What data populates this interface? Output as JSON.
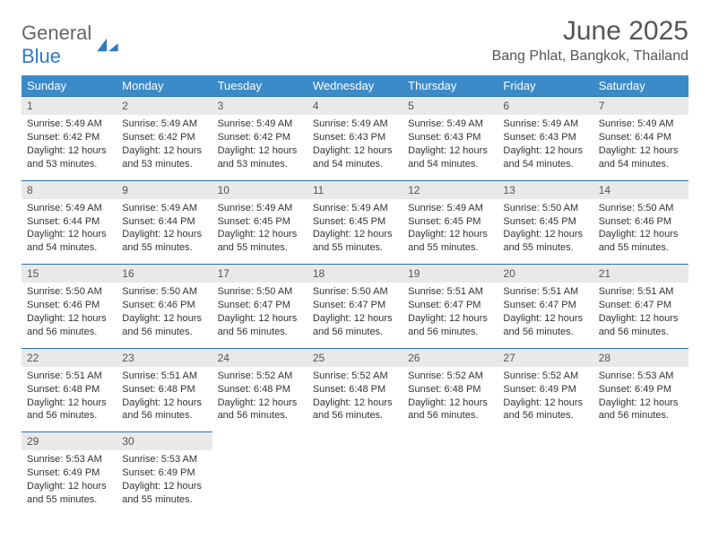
{
  "brand": {
    "part1": "General",
    "part2": "Blue"
  },
  "title": "June 2025",
  "location": "Bang Phlat, Bangkok, Thailand",
  "colors": {
    "header_bg": "#3b8bc9",
    "header_text": "#ffffff",
    "daynum_bg": "#e9e9e9",
    "daynum_border": "#2f6fa9",
    "text": "#333333",
    "brand_blue": "#2f7bbf"
  },
  "weekdays": [
    "Sunday",
    "Monday",
    "Tuesday",
    "Wednesday",
    "Thursday",
    "Friday",
    "Saturday"
  ],
  "weeks": [
    [
      {
        "n": "1",
        "sunrise": "Sunrise: 5:49 AM",
        "sunset": "Sunset: 6:42 PM",
        "daylight": "Daylight: 12 hours and 53 minutes."
      },
      {
        "n": "2",
        "sunrise": "Sunrise: 5:49 AM",
        "sunset": "Sunset: 6:42 PM",
        "daylight": "Daylight: 12 hours and 53 minutes."
      },
      {
        "n": "3",
        "sunrise": "Sunrise: 5:49 AM",
        "sunset": "Sunset: 6:42 PM",
        "daylight": "Daylight: 12 hours and 53 minutes."
      },
      {
        "n": "4",
        "sunrise": "Sunrise: 5:49 AM",
        "sunset": "Sunset: 6:43 PM",
        "daylight": "Daylight: 12 hours and 54 minutes."
      },
      {
        "n": "5",
        "sunrise": "Sunrise: 5:49 AM",
        "sunset": "Sunset: 6:43 PM",
        "daylight": "Daylight: 12 hours and 54 minutes."
      },
      {
        "n": "6",
        "sunrise": "Sunrise: 5:49 AM",
        "sunset": "Sunset: 6:43 PM",
        "daylight": "Daylight: 12 hours and 54 minutes."
      },
      {
        "n": "7",
        "sunrise": "Sunrise: 5:49 AM",
        "sunset": "Sunset: 6:44 PM",
        "daylight": "Daylight: 12 hours and 54 minutes."
      }
    ],
    [
      {
        "n": "8",
        "sunrise": "Sunrise: 5:49 AM",
        "sunset": "Sunset: 6:44 PM",
        "daylight": "Daylight: 12 hours and 54 minutes."
      },
      {
        "n": "9",
        "sunrise": "Sunrise: 5:49 AM",
        "sunset": "Sunset: 6:44 PM",
        "daylight": "Daylight: 12 hours and 55 minutes."
      },
      {
        "n": "10",
        "sunrise": "Sunrise: 5:49 AM",
        "sunset": "Sunset: 6:45 PM",
        "daylight": "Daylight: 12 hours and 55 minutes."
      },
      {
        "n": "11",
        "sunrise": "Sunrise: 5:49 AM",
        "sunset": "Sunset: 6:45 PM",
        "daylight": "Daylight: 12 hours and 55 minutes."
      },
      {
        "n": "12",
        "sunrise": "Sunrise: 5:49 AM",
        "sunset": "Sunset: 6:45 PM",
        "daylight": "Daylight: 12 hours and 55 minutes."
      },
      {
        "n": "13",
        "sunrise": "Sunrise: 5:50 AM",
        "sunset": "Sunset: 6:45 PM",
        "daylight": "Daylight: 12 hours and 55 minutes."
      },
      {
        "n": "14",
        "sunrise": "Sunrise: 5:50 AM",
        "sunset": "Sunset: 6:46 PM",
        "daylight": "Daylight: 12 hours and 55 minutes."
      }
    ],
    [
      {
        "n": "15",
        "sunrise": "Sunrise: 5:50 AM",
        "sunset": "Sunset: 6:46 PM",
        "daylight": "Daylight: 12 hours and 56 minutes."
      },
      {
        "n": "16",
        "sunrise": "Sunrise: 5:50 AM",
        "sunset": "Sunset: 6:46 PM",
        "daylight": "Daylight: 12 hours and 56 minutes."
      },
      {
        "n": "17",
        "sunrise": "Sunrise: 5:50 AM",
        "sunset": "Sunset: 6:47 PM",
        "daylight": "Daylight: 12 hours and 56 minutes."
      },
      {
        "n": "18",
        "sunrise": "Sunrise: 5:50 AM",
        "sunset": "Sunset: 6:47 PM",
        "daylight": "Daylight: 12 hours and 56 minutes."
      },
      {
        "n": "19",
        "sunrise": "Sunrise: 5:51 AM",
        "sunset": "Sunset: 6:47 PM",
        "daylight": "Daylight: 12 hours and 56 minutes."
      },
      {
        "n": "20",
        "sunrise": "Sunrise: 5:51 AM",
        "sunset": "Sunset: 6:47 PM",
        "daylight": "Daylight: 12 hours and 56 minutes."
      },
      {
        "n": "21",
        "sunrise": "Sunrise: 5:51 AM",
        "sunset": "Sunset: 6:47 PM",
        "daylight": "Daylight: 12 hours and 56 minutes."
      }
    ],
    [
      {
        "n": "22",
        "sunrise": "Sunrise: 5:51 AM",
        "sunset": "Sunset: 6:48 PM",
        "daylight": "Daylight: 12 hours and 56 minutes."
      },
      {
        "n": "23",
        "sunrise": "Sunrise: 5:51 AM",
        "sunset": "Sunset: 6:48 PM",
        "daylight": "Daylight: 12 hours and 56 minutes."
      },
      {
        "n": "24",
        "sunrise": "Sunrise: 5:52 AM",
        "sunset": "Sunset: 6:48 PM",
        "daylight": "Daylight: 12 hours and 56 minutes."
      },
      {
        "n": "25",
        "sunrise": "Sunrise: 5:52 AM",
        "sunset": "Sunset: 6:48 PM",
        "daylight": "Daylight: 12 hours and 56 minutes."
      },
      {
        "n": "26",
        "sunrise": "Sunrise: 5:52 AM",
        "sunset": "Sunset: 6:48 PM",
        "daylight": "Daylight: 12 hours and 56 minutes."
      },
      {
        "n": "27",
        "sunrise": "Sunrise: 5:52 AM",
        "sunset": "Sunset: 6:49 PM",
        "daylight": "Daylight: 12 hours and 56 minutes."
      },
      {
        "n": "28",
        "sunrise": "Sunrise: 5:53 AM",
        "sunset": "Sunset: 6:49 PM",
        "daylight": "Daylight: 12 hours and 56 minutes."
      }
    ],
    [
      {
        "n": "29",
        "sunrise": "Sunrise: 5:53 AM",
        "sunset": "Sunset: 6:49 PM",
        "daylight": "Daylight: 12 hours and 55 minutes."
      },
      {
        "n": "30",
        "sunrise": "Sunrise: 5:53 AM",
        "sunset": "Sunset: 6:49 PM",
        "daylight": "Daylight: 12 hours and 55 minutes."
      },
      null,
      null,
      null,
      null,
      null
    ]
  ]
}
